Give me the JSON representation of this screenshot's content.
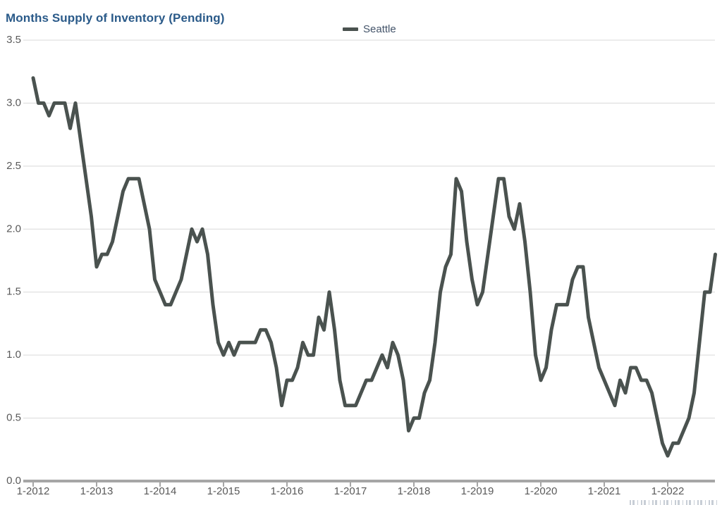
{
  "header": {
    "title": "Months Supply of Inventory (Pending)",
    "title_color": "#2a5a89"
  },
  "legend": {
    "label": "Seattle",
    "swatch_color": "#4a524f",
    "label_color": "#44546a"
  },
  "colors": {
    "gridline": "#d9d9d9",
    "axis_line": "#a6a6a6",
    "tick_label": "#595959",
    "series_line": "#4a524f"
  },
  "chart_data": {
    "type": "line",
    "title": "Months Supply of Inventory (Pending)",
    "xlabel": "",
    "ylabel": "",
    "ylim": [
      0,
      3.5
    ],
    "grid": "horizontal",
    "legend_position": "top-center",
    "x_frequency": "monthly",
    "x_start": "1-2012",
    "x_end": "10-2022",
    "x_tick_labels": [
      "1-2012",
      "1-2013",
      "1-2014",
      "1-2015",
      "1-2016",
      "1-2017",
      "1-2018",
      "1-2019",
      "1-2020",
      "1-2021",
      "1-2022"
    ],
    "y_tick_labels": [
      "0.0",
      "0.5",
      "1.0",
      "1.5",
      "2.0",
      "2.5",
      "3.0",
      "3.5"
    ],
    "series": [
      {
        "name": "Seattle",
        "color": "#4a524f",
        "values": [
          3.2,
          3.0,
          3.0,
          2.9,
          3.0,
          3.0,
          3.0,
          2.8,
          3.0,
          2.7,
          2.4,
          2.1,
          1.7,
          1.8,
          1.8,
          1.9,
          2.1,
          2.3,
          2.4,
          2.4,
          2.4,
          2.2,
          2.0,
          1.6,
          1.5,
          1.4,
          1.4,
          1.5,
          1.6,
          1.8,
          2.0,
          1.9,
          2.0,
          1.8,
          1.4,
          1.1,
          1.0,
          1.1,
          1.0,
          1.1,
          1.1,
          1.1,
          1.1,
          1.2,
          1.2,
          1.1,
          0.9,
          0.6,
          0.8,
          0.8,
          0.9,
          1.1,
          1.0,
          1.0,
          1.3,
          1.2,
          1.5,
          1.2,
          0.8,
          0.6,
          0.6,
          0.6,
          0.7,
          0.8,
          0.8,
          0.9,
          1.0,
          0.9,
          1.1,
          1.0,
          0.8,
          0.4,
          0.5,
          0.5,
          0.7,
          0.8,
          1.1,
          1.5,
          1.7,
          1.8,
          2.4,
          2.3,
          1.9,
          1.6,
          1.4,
          1.5,
          1.8,
          2.1,
          2.4,
          2.4,
          2.1,
          2.0,
          2.2,
          1.9,
          1.5,
          1.0,
          0.8,
          0.9,
          1.2,
          1.4,
          1.4,
          1.4,
          1.6,
          1.7,
          1.7,
          1.3,
          1.1,
          0.9,
          0.8,
          0.7,
          0.6,
          0.8,
          0.7,
          0.9,
          0.9,
          0.8,
          0.8,
          0.7,
          0.5,
          0.3,
          0.2,
          0.3,
          0.3,
          0.4,
          0.5,
          0.7,
          1.1,
          1.5,
          1.5,
          1.8
        ]
      }
    ]
  }
}
